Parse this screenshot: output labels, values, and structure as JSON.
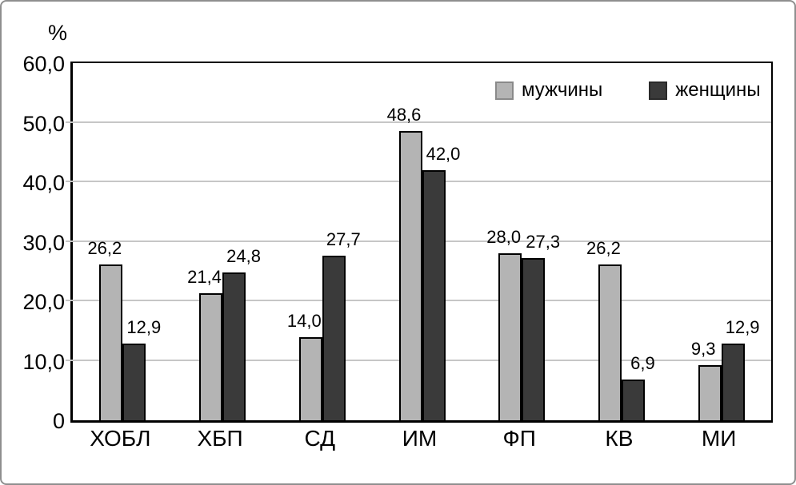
{
  "percent_label": "%",
  "legend": {
    "men_label": "мужчины",
    "women_label": "женщины"
  },
  "colors": {
    "men_bar": "#b4b4b4",
    "women_bar": "#3a3a3a",
    "bar_border": "#000000",
    "gridline": "#c6c6c6",
    "axis": "#000000",
    "frame": "#8f8f8f"
  },
  "chart_data": {
    "type": "bar",
    "title": "",
    "ylabel": "%",
    "xlabel": "",
    "ylim": [
      0,
      60
    ],
    "grid": true,
    "legend_position": "top-right",
    "categories": [
      "ХОБЛ",
      "ХБП",
      "СД",
      "ИМ",
      "ФП",
      "КВ",
      "МИ"
    ],
    "yticks": [
      {
        "label": "60,0",
        "value": 60
      },
      {
        "label": "50,0",
        "value": 50
      },
      {
        "label": "40,0",
        "value": 40
      },
      {
        "label": "30,0",
        "value": 30
      },
      {
        "label": "20,0",
        "value": 20
      },
      {
        "label": "10,0",
        "value": 10
      },
      {
        "label": "0",
        "value": 0
      }
    ],
    "series": [
      {
        "name": "мужчины",
        "values": [
          26.2,
          21.4,
          14.0,
          48.6,
          28.0,
          26.2,
          9.3
        ],
        "value_labels": [
          "26,2",
          "21,4",
          "14,0",
          "48,6",
          "28,0",
          "26,2",
          "9,3"
        ]
      },
      {
        "name": "женщины",
        "values": [
          12.9,
          24.8,
          27.7,
          42.0,
          27.3,
          6.9,
          12.9
        ],
        "value_labels": [
          "12,9",
          "24,8",
          "27,7",
          "42,0",
          "27,3",
          "6,9",
          "12,9"
        ]
      }
    ]
  }
}
